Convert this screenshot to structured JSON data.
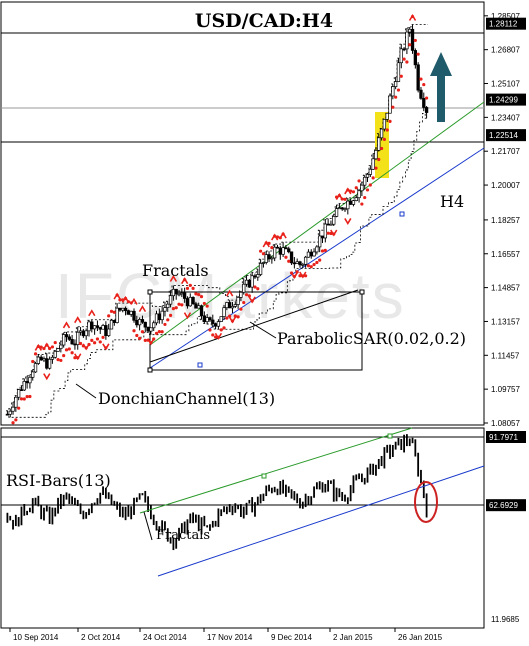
{
  "chart_data": {
    "type": "candlestick",
    "title": "USD/CAD:H4",
    "watermark": "IFCMarkets",
    "timeframe_label": "H4",
    "x_tick_labels": [
      "10 Sep 2014",
      "2 Oct 2014",
      "24 Oct 2014",
      "17 Nov 2014",
      "9 Dec 2014",
      "2 Jan 2015",
      "26 Jan 2015"
    ],
    "price_panel": {
      "y_tick_labels": [
        "1.28507",
        "1.26807",
        "1.25107",
        "1.23407",
        "1.21707",
        "1.20007",
        "1.18257",
        "1.16557",
        "1.14857",
        "1.13157",
        "1.11457",
        "1.09757",
        "1.08057"
      ],
      "ylim": [
        1.08057,
        1.29
      ],
      "levels": [
        {
          "label": "1.28112",
          "value": 1.28112
        },
        {
          "label": "1.24299",
          "value": 1.24299
        },
        {
          "label": "1.22514",
          "value": 1.22514
        }
      ],
      "indicators": [
        "Fractals",
        "ParabolicSAR(0.02,0.2)",
        "DonchianChannel(13)"
      ],
      "trend_direction": "up",
      "highlight_color": "#f3e21a",
      "candle_close_approx": [
        1.085,
        1.094,
        1.101,
        1.108,
        1.112,
        1.11,
        1.118,
        1.124,
        1.121,
        1.127,
        1.131,
        1.128,
        1.126,
        1.136,
        1.139,
        1.135,
        1.13,
        1.129,
        1.134,
        1.14,
        1.146,
        1.144,
        1.14,
        1.136,
        1.13,
        1.132,
        1.138,
        1.142,
        1.147,
        1.152,
        1.158,
        1.163,
        1.168,
        1.167,
        1.162,
        1.16,
        1.166,
        1.172,
        1.178,
        1.184,
        1.19,
        1.193,
        1.198,
        1.206,
        1.218,
        1.232,
        1.25,
        1.266,
        1.279,
        1.25,
        1.238
      ]
    },
    "rsi_panel": {
      "label": "RSI-Bars(13)",
      "y_tick_labels": [
        "91.7971",
        "62.6929",
        "11.9685"
      ],
      "ylim": [
        11.9685,
        91.7971
      ],
      "levels": [
        {
          "label": "91.7971",
          "value": 91.7971
        },
        {
          "label": "62.6929",
          "value": 62.6929
        }
      ],
      "rsi_approx": [
        58,
        55,
        61,
        64,
        60,
        57,
        63,
        66,
        62,
        59,
        64,
        68,
        65,
        61,
        58,
        62,
        66,
        60,
        55,
        50,
        48,
        53,
        57,
        54,
        52,
        58,
        61,
        63,
        60,
        62,
        65,
        69,
        71,
        68,
        66,
        64,
        67,
        70,
        72,
        68,
        66,
        70,
        74,
        76,
        80,
        84,
        87,
        89,
        91,
        78,
        62
      ]
    },
    "colors": {
      "sar": "#e8211b",
      "fractal": "#e8211b",
      "channel": "#1a3acc",
      "trend_up": "#2a9a2a",
      "arrow": "#1f5b6b",
      "ellipse": "#cc2222",
      "level_box": "#000000"
    },
    "grid": false
  }
}
